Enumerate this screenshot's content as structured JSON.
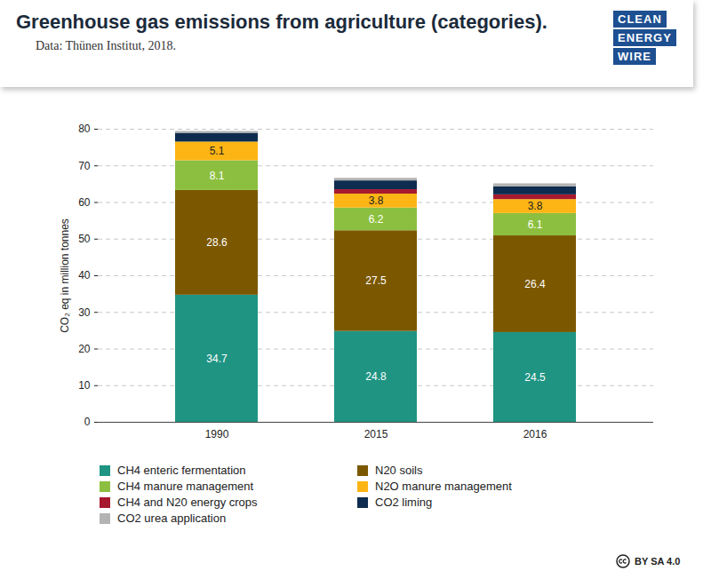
{
  "chart_data": {
    "type": "bar",
    "stacked": true,
    "title": "Greenhouse gas emissions from agriculture (categories).",
    "subtitle": "Data: Thünen Institut, 2018.",
    "logo": [
      "CLEAN",
      "ENERGY",
      "WIRE"
    ],
    "license": "BY SA 4.0",
    "y_label": "CO₂ eq in million tonnes",
    "categories": [
      "1990",
      "2015",
      "2016"
    ],
    "ylim": [
      0,
      80
    ],
    "yticks": [
      0,
      10,
      20,
      30,
      40,
      50,
      60,
      70,
      80
    ],
    "grid": true,
    "legend": "bottom",
    "series": [
      {
        "name": "CH4 enteric fermentation",
        "color": "#1f9483",
        "values": [
          34.7,
          24.8,
          24.5
        ],
        "data_labels": true
      },
      {
        "name": "N20 soils",
        "color": "#7b5800",
        "values": [
          28.6,
          27.5,
          26.4
        ],
        "data_labels": true
      },
      {
        "name": "CH4 manure management",
        "color": "#8cbf3f",
        "values": [
          8.1,
          6.2,
          6.1
        ],
        "data_labels": true
      },
      {
        "name": "N2O manure management",
        "color": "#fdb515",
        "values": [
          5.1,
          3.8,
          3.8
        ],
        "data_labels": true
      },
      {
        "name": "CH4 and N20 energy crops",
        "color": "#a6192e",
        "values": [
          0,
          1.2,
          1.3
        ]
      },
      {
        "name": "CO2 liming",
        "color": "#0d2c4f",
        "values": [
          2.4,
          2.4,
          2.2
        ]
      },
      {
        "name": "CO2 urea application",
        "color": "#b3b3b3",
        "values": [
          0.5,
          0.7,
          0.8
        ]
      }
    ]
  }
}
